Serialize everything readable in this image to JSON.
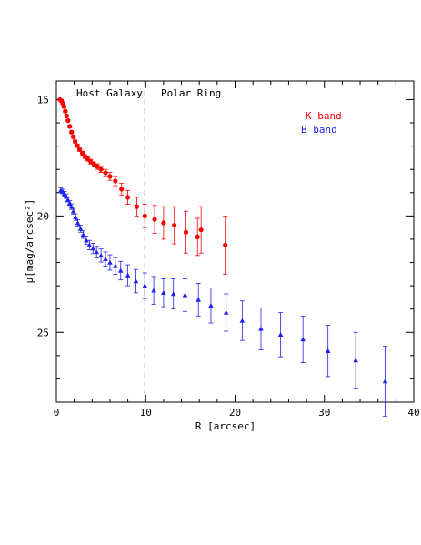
{
  "chart_data": {
    "type": "scatter",
    "title": "",
    "xlabel": "R [arcsec]",
    "ylabel": "μ[mag/arcsec²]",
    "xlim": [
      0,
      40
    ],
    "ylim": [
      28.0,
      14.2
    ],
    "y_inverted": true,
    "x_ticks": [
      0,
      10,
      20,
      30,
      40
    ],
    "y_ticks": [
      15,
      20,
      25
    ],
    "grid": false,
    "legend_position": "top-right",
    "annotations": [
      "Host Galaxy",
      "Polar Ring"
    ],
    "divider_x": 9.9,
    "series": [
      {
        "name": "K band",
        "color": "#ff0000",
        "marker": "circle",
        "points": [
          {
            "x": 0.4,
            "y": 15.0,
            "err": 0.05
          },
          {
            "x": 0.55,
            "y": 15.05,
            "err": 0.05
          },
          {
            "x": 0.7,
            "y": 15.15,
            "err": 0.05
          },
          {
            "x": 0.85,
            "y": 15.3,
            "err": 0.05
          },
          {
            "x": 1.0,
            "y": 15.5,
            "err": 0.05
          },
          {
            "x": 1.15,
            "y": 15.7,
            "err": 0.05
          },
          {
            "x": 1.3,
            "y": 15.9,
            "err": 0.05
          },
          {
            "x": 1.5,
            "y": 16.15,
            "err": 0.06
          },
          {
            "x": 1.7,
            "y": 16.4,
            "err": 0.06
          },
          {
            "x": 1.9,
            "y": 16.6,
            "err": 0.06
          },
          {
            "x": 2.1,
            "y": 16.8,
            "err": 0.06
          },
          {
            "x": 2.35,
            "y": 16.98,
            "err": 0.07
          },
          {
            "x": 2.6,
            "y": 17.15,
            "err": 0.07
          },
          {
            "x": 2.9,
            "y": 17.3,
            "err": 0.08
          },
          {
            "x": 3.2,
            "y": 17.45,
            "err": 0.08
          },
          {
            "x": 3.5,
            "y": 17.55,
            "err": 0.09
          },
          {
            "x": 3.85,
            "y": 17.67,
            "err": 0.1
          },
          {
            "x": 4.2,
            "y": 17.78,
            "err": 0.1
          },
          {
            "x": 4.6,
            "y": 17.88,
            "err": 0.12
          },
          {
            "x": 5.0,
            "y": 18.0,
            "err": 0.13
          },
          {
            "x": 5.5,
            "y": 18.15,
            "err": 0.15
          },
          {
            "x": 6.0,
            "y": 18.3,
            "err": 0.17
          },
          {
            "x": 6.6,
            "y": 18.5,
            "err": 0.2
          },
          {
            "x": 7.3,
            "y": 18.85,
            "err": 0.25
          },
          {
            "x": 8.0,
            "y": 19.2,
            "err": 0.3
          },
          {
            "x": 9.0,
            "y": 19.6,
            "err": 0.4
          },
          {
            "x": 9.9,
            "y": 20.0,
            "err": 0.5
          },
          {
            "x": 11.0,
            "y": 20.15,
            "err": 0.6
          },
          {
            "x": 12.0,
            "y": 20.3,
            "err": 0.7
          },
          {
            "x": 13.2,
            "y": 20.4,
            "err": 0.8
          },
          {
            "x": 14.5,
            "y": 20.7,
            "err": 0.9
          },
          {
            "x": 15.8,
            "y": 20.9,
            "err": 0.8
          },
          {
            "x": 16.2,
            "y": 20.6,
            "err": 1.0
          },
          {
            "x": 18.9,
            "y": 21.25,
            "err": 1.25
          }
        ]
      },
      {
        "name": "B band",
        "color": "#2222ee",
        "marker": "triangle",
        "points": [
          {
            "x": 0.5,
            "y": 18.9,
            "err": 0.1
          },
          {
            "x": 0.7,
            "y": 18.95,
            "err": 0.1
          },
          {
            "x": 0.9,
            "y": 19.05,
            "err": 0.1
          },
          {
            "x": 1.1,
            "y": 19.15,
            "err": 0.1
          },
          {
            "x": 1.3,
            "y": 19.3,
            "err": 0.1
          },
          {
            "x": 1.5,
            "y": 19.45,
            "err": 0.1
          },
          {
            "x": 1.7,
            "y": 19.6,
            "err": 0.12
          },
          {
            "x": 1.9,
            "y": 19.8,
            "err": 0.12
          },
          {
            "x": 2.15,
            "y": 20.05,
            "err": 0.14
          },
          {
            "x": 2.4,
            "y": 20.3,
            "err": 0.14
          },
          {
            "x": 2.7,
            "y": 20.55,
            "err": 0.15
          },
          {
            "x": 3.0,
            "y": 20.8,
            "err": 0.16
          },
          {
            "x": 3.35,
            "y": 21.05,
            "err": 0.18
          },
          {
            "x": 3.7,
            "y": 21.25,
            "err": 0.2
          },
          {
            "x": 4.1,
            "y": 21.4,
            "err": 0.22
          },
          {
            "x": 4.5,
            "y": 21.55,
            "err": 0.25
          },
          {
            "x": 5.0,
            "y": 21.7,
            "err": 0.28
          },
          {
            "x": 5.5,
            "y": 21.85,
            "err": 0.3
          },
          {
            "x": 6.0,
            "y": 22.0,
            "err": 0.33
          },
          {
            "x": 6.6,
            "y": 22.15,
            "err": 0.36
          },
          {
            "x": 7.2,
            "y": 22.35,
            "err": 0.4
          },
          {
            "x": 8.0,
            "y": 22.55,
            "err": 0.45
          },
          {
            "x": 8.9,
            "y": 22.8,
            "err": 0.5
          },
          {
            "x": 9.9,
            "y": 23.0,
            "err": 0.55
          },
          {
            "x": 10.9,
            "y": 23.2,
            "err": 0.6
          },
          {
            "x": 12.0,
            "y": 23.3,
            "err": 0.6
          },
          {
            "x": 13.1,
            "y": 23.35,
            "err": 0.65
          },
          {
            "x": 14.4,
            "y": 23.4,
            "err": 0.7
          },
          {
            "x": 15.9,
            "y": 23.6,
            "err": 0.7
          },
          {
            "x": 17.3,
            "y": 23.85,
            "err": 0.75
          },
          {
            "x": 19.0,
            "y": 24.15,
            "err": 0.8
          },
          {
            "x": 20.8,
            "y": 24.5,
            "err": 0.85
          },
          {
            "x": 22.9,
            "y": 24.85,
            "err": 0.9
          },
          {
            "x": 25.1,
            "y": 25.1,
            "err": 0.95
          },
          {
            "x": 27.6,
            "y": 25.3,
            "err": 1.0
          },
          {
            "x": 30.4,
            "y": 25.8,
            "err": 1.1
          },
          {
            "x": 33.5,
            "y": 26.2,
            "err": 1.2
          },
          {
            "x": 36.8,
            "y": 27.1,
            "err": 1.5
          }
        ]
      }
    ]
  }
}
